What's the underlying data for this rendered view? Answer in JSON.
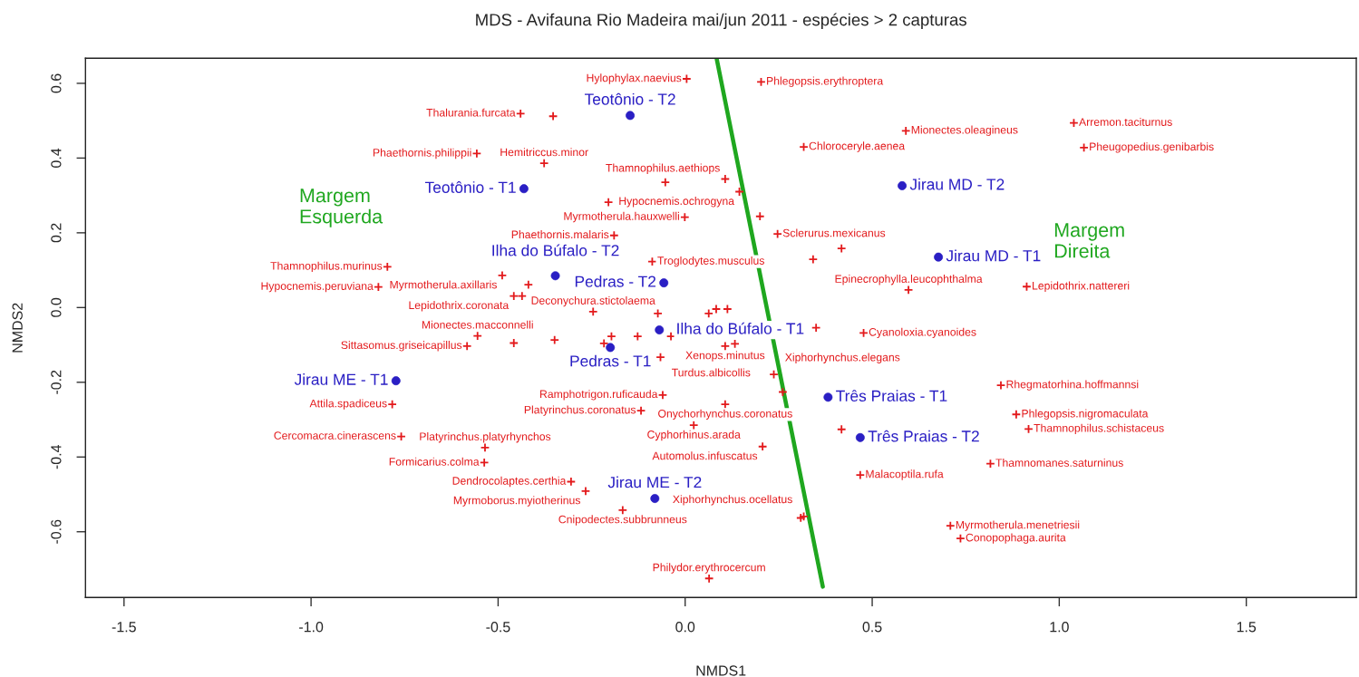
{
  "chart_data": {
    "type": "scatter",
    "title": "MDS - Avifauna Rio Madeira mai/jun 2011 - espécies > 2 capturas",
    "xlabel": "NMDS1",
    "ylabel": "NMDS2",
    "xlim": [
      -1.603,
      1.794
    ],
    "ylim": [
      -0.776,
      0.667
    ],
    "xticks": [
      -1.5,
      {
        "value": -1.0,
        "label": "-1.0"
      },
      -0.5,
      {
        "value": 0,
        "label": "0.0"
      },
      0.5,
      {
        "value": 1.0,
        "label": "1.0"
      },
      1.5
    ],
    "yticks": [
      -0.6,
      -0.4,
      -0.2,
      {
        "value": 0,
        "label": "0.0"
      },
      0.2,
      0.4,
      0.6
    ],
    "series": [
      {
        "type": "line",
        "color": "#1fa71f",
        "x": [
          0.084,
          0.368
        ],
        "values": [
          0.667,
          -0.747
        ]
      },
      {
        "marker": "circle",
        "color": "#2a1fc4",
        "x": [
          -0.147,
          -0.431,
          -0.347,
          -0.057,
          0.58,
          0.677,
          -0.069,
          -0.2,
          -0.773,
          0.382,
          0.468,
          -0.081
        ],
        "values": [
          0.514,
          0.318,
          0.085,
          0.066,
          0.326,
          0.135,
          -0.06,
          -0.107,
          -0.196,
          -0.24,
          -0.348,
          -0.511
        ]
      },
      {
        "marker": "cross",
        "color": "#e31a1c",
        "x": [
          -0.44,
          -0.353,
          -0.557,
          -0.377,
          -0.796,
          -0.489,
          -0.82,
          -0.458,
          -0.436,
          -0.419,
          -0.246,
          0.004,
          0.203,
          0.59,
          0.317,
          0.107,
          0.145,
          -0.053,
          -0.205,
          -0.001,
          -0.19,
          0.2,
          0.247,
          0.418,
          0.342,
          -0.088,
          0.597,
          -0.073,
          0.063,
          0.083,
          0.113,
          0.35,
          1.039,
          1.066,
          0.913,
          -0.555,
          -0.583,
          -0.458,
          -0.349,
          -0.783,
          -0.759,
          -0.535,
          -0.537,
          -0.305,
          -0.266,
          -0.167,
          -0.217,
          -0.197,
          -0.127,
          -0.038,
          0.477,
          0.107,
          0.133,
          -0.066,
          0.237,
          0.107,
          0.261,
          -0.118,
          0.023,
          0.207,
          0.418,
          0.468,
          0.309,
          0.317,
          0.064,
          0.709,
          0.736,
          0.844,
          0.885,
          0.918,
          0.816,
          -0.06
        ],
        "values": [
          0.519,
          0.512,
          0.412,
          0.386,
          0.109,
          0.086,
          0.055,
          0.031,
          0.031,
          0.061,
          -0.011,
          0.612,
          0.604,
          0.473,
          0.43,
          0.344,
          0.31,
          0.335,
          0.282,
          0.242,
          0.193,
          0.244,
          0.197,
          0.158,
          0.129,
          0.123,
          0.047,
          -0.016,
          -0.016,
          -0.004,
          -0.004,
          -0.054,
          0.494,
          0.428,
          0.056,
          -0.076,
          -0.103,
          -0.095,
          -0.087,
          -0.259,
          -0.345,
          -0.375,
          -0.415,
          -0.466,
          -0.491,
          -0.542,
          -0.096,
          -0.077,
          -0.077,
          -0.077,
          -0.068,
          -0.103,
          -0.097,
          -0.133,
          -0.179,
          -0.259,
          -0.226,
          -0.276,
          -0.315,
          -0.372,
          -0.326,
          -0.448,
          -0.563,
          -0.559,
          -0.725,
          -0.584,
          -0.618,
          -0.208,
          -0.286,
          -0.325,
          -0.418,
          -0.234
        ]
      }
    ],
    "annotations": [
      {
        "text": "Teotônio - T2",
        "x": -0.147,
        "y": 0.514
      },
      {
        "text": "Teotônio - T1",
        "x": -0.431,
        "y": 0.318
      },
      {
        "text": "Ilha do Búfalo - T2",
        "x": -0.347,
        "y": 0.085
      },
      {
        "text": "Pedras - T2",
        "x": -0.057,
        "y": 0.066
      },
      {
        "text": "Jirau MD - T2",
        "x": 0.58,
        "y": 0.326
      },
      {
        "text": "Jirau MD - T1",
        "x": 0.677,
        "y": 0.135
      },
      {
        "text": "Ilha do Búfalo - T1",
        "x": -0.069,
        "y": -0.06
      },
      {
        "text": "Pedras - T1",
        "x": -0.2,
        "y": -0.107
      },
      {
        "text": "Jirau ME - T1",
        "x": -0.773,
        "y": -0.196
      },
      {
        "text": "Três Praias - T1",
        "x": 0.382,
        "y": -0.24
      },
      {
        "text": "Três Praias - T2",
        "x": 0.468,
        "y": -0.348
      },
      {
        "text": "Jirau ME - T2",
        "x": -0.081,
        "y": -0.511
      },
      {
        "text": "Thalurania.furcata",
        "x": -0.44,
        "y": 0.519
      },
      {
        "text": "Phaethornis.philippii",
        "x": -0.557,
        "y": 0.412
      },
      {
        "text": "Hemitriccus.minor",
        "x": -0.377,
        "y": 0.386
      },
      {
        "text": "Thamnophilus.murinus",
        "x": -0.796,
        "y": 0.109
      },
      {
        "text": "Myrmotherula.axillaris",
        "x": -0.489,
        "y": 0.086
      },
      {
        "text": "Hypocnemis.peruviana",
        "x": -0.82,
        "y": 0.055
      },
      {
        "text": "Lepidothrix.coronata",
        "x": -0.458,
        "y": 0.031
      },
      {
        "text": "Deconychura.stictolaema",
        "x": -0.246,
        "y": -0.011
      },
      {
        "text": "Hylophylax.naevius",
        "x": 0.004,
        "y": 0.612
      },
      {
        "text": "Phlegopsis.erythroptera",
        "x": 0.203,
        "y": 0.604
      },
      {
        "text": "Mionectes.oleagineus",
        "x": 0.59,
        "y": 0.473
      },
      {
        "text": "Chloroceryle.aenea",
        "x": 0.317,
        "y": 0.43
      },
      {
        "text": "Thamnophilus.aethiops",
        "x": 0.107,
        "y": 0.344
      },
      {
        "text": "Hypocnemis.ochrogyna",
        "x": 0.145,
        "y": 0.31
      },
      {
        "text": "Myrmotherula.hauxwelli",
        "x": -0.001,
        "y": 0.242
      },
      {
        "text": "Phaethornis.malaris",
        "x": -0.19,
        "y": 0.193
      },
      {
        "text": "Sclerurus.mexicanus",
        "x": 0.247,
        "y": 0.197
      },
      {
        "text": "Troglodytes.musculus",
        "x": -0.088,
        "y": 0.123
      },
      {
        "text": "Epinecrophylla.leucophthalma",
        "x": 0.597,
        "y": 0.047
      },
      {
        "text": "Arremon.taciturnus",
        "x": 1.039,
        "y": 0.494
      },
      {
        "text": "Pheugopedius.genibarbis",
        "x": 1.066,
        "y": 0.428
      },
      {
        "text": "Lepidothrix.nattereri",
        "x": 0.913,
        "y": 0.056
      },
      {
        "text": "Mionectes.macconnelli",
        "x": -0.555,
        "y": -0.076
      },
      {
        "text": "Sittasomus.griseicapillus",
        "x": -0.583,
        "y": -0.103
      },
      {
        "text": "Attila.spadiceus",
        "x": -0.783,
        "y": -0.259
      },
      {
        "text": "Cercomacra.cinerascens",
        "x": -0.759,
        "y": -0.345
      },
      {
        "text": "Platyrinchus.platyrhynchos",
        "x": -0.535,
        "y": -0.375
      },
      {
        "text": "Formicarius.colma",
        "x": -0.537,
        "y": -0.415
      },
      {
        "text": "Dendrocolaptes.certhia",
        "x": -0.305,
        "y": -0.466
      },
      {
        "text": "Myrmoborus.myiotherinus",
        "x": -0.266,
        "y": -0.491
      },
      {
        "text": "Cnipodectes.subbrunneus",
        "x": -0.167,
        "y": -0.542
      },
      {
        "text": "Cyanoloxia.cyanoides",
        "x": 0.477,
        "y": -0.068
      },
      {
        "text": "Xenops.minutus",
        "x": 0.107,
        "y": -0.103
      },
      {
        "text": "Turdus.albicollis",
        "x": -0.066,
        "y": -0.133
      },
      {
        "text": "Xiphorhynchus.elegans",
        "x": 0.237,
        "y": -0.179
      },
      {
        "text": "Ramphotrigon.ruficauda",
        "x": -0.06,
        "y": -0.234
      },
      {
        "text": "Onychorhynchus.coronatus",
        "x": 0.107,
        "y": -0.259
      },
      {
        "text": "Platyrinchus.coronatus",
        "x": -0.118,
        "y": -0.276
      },
      {
        "text": "Cyphorhinus.arada",
        "x": 0.023,
        "y": -0.315
      },
      {
        "text": "Automolus.infuscatus",
        "x": 0.207,
        "y": -0.372
      },
      {
        "text": "Malacoptila.rufa",
        "x": 0.468,
        "y": -0.448
      },
      {
        "text": "Xiphorhynchus.ocellatus",
        "x": 0.317,
        "y": -0.559
      },
      {
        "text": "Philydor.erythrocercum",
        "x": 0.064,
        "y": -0.725
      },
      {
        "text": "Rhegmatorhina.hoffmannsi",
        "x": 0.844,
        "y": -0.208
      },
      {
        "text": "Phlegopsis.nigromaculata",
        "x": 0.885,
        "y": -0.286
      },
      {
        "text": "Thamnophilus.schistaceus",
        "x": 0.918,
        "y": -0.325
      },
      {
        "text": "Thamnomanes.saturninus",
        "x": 0.816,
        "y": -0.418
      },
      {
        "text": "Myrmotherula.menetriesii",
        "x": 0.709,
        "y": -0.584
      },
      {
        "text": "Conopophaga.aurita",
        "x": 0.736,
        "y": -0.618
      },
      "Margem\nEsquerda",
      "Margem\nDireita"
    ]
  }
}
